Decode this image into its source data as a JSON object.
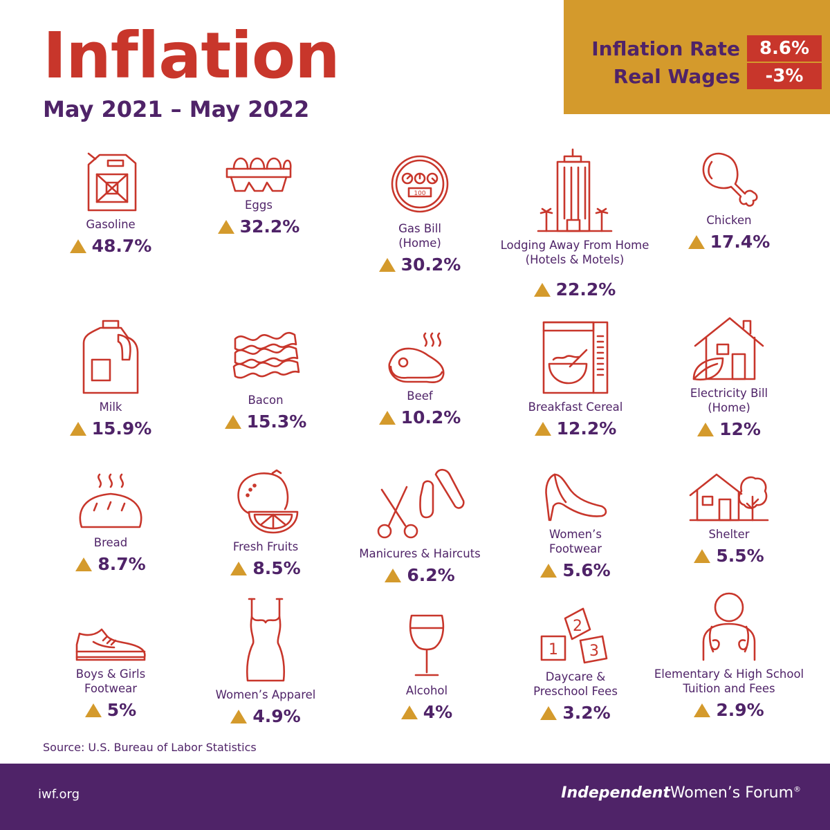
{
  "header": {
    "title": "Inflation",
    "subtitle": "May 2021 – May 2022"
  },
  "rate_box": {
    "inflation_rate_label": "Inflation Rate",
    "inflation_rate_value": "8.6%",
    "real_wages_label": "Real Wages",
    "real_wages_value": "-3%"
  },
  "items": [
    {
      "label": "Gasoline",
      "change": "48.7%",
      "icon": "gas-can-icon"
    },
    {
      "label": "Eggs",
      "change": "32.2%",
      "icon": "egg-carton-icon"
    },
    {
      "label": "Gas Bill\n(Home)",
      "change": "30.2%",
      "icon": "gas-meter-icon"
    },
    {
      "label": "Lodging Away From Home\n(Hotels & Motels)",
      "change": "22.2%",
      "icon": "hotel-icon"
    },
    {
      "label": "Chicken",
      "change": "17.4%",
      "icon": "chicken-leg-icon"
    },
    {
      "label": "Milk",
      "change": "15.9%",
      "icon": "milk-jug-icon"
    },
    {
      "label": "Bacon",
      "change": "15.3%",
      "icon": "bacon-icon"
    },
    {
      "label": "Beef",
      "change": "10.2%",
      "icon": "steak-icon"
    },
    {
      "label": "Breakfast Cereal",
      "change": "12.2%",
      "icon": "cereal-box-icon"
    },
    {
      "label": "Electricity Bill\n(Home)",
      "change": "12%",
      "icon": "eco-house-icon"
    },
    {
      "label": "Bread",
      "change": "8.7%",
      "icon": "bread-icon"
    },
    {
      "label": "Fresh Fruits",
      "change": "8.5%",
      "icon": "citrus-fruit-icon"
    },
    {
      "label": "Manicures & Haircuts",
      "change": "6.2%",
      "icon": "scissors-nail-file-icon"
    },
    {
      "label": "Women’s\nFootwear",
      "change": "5.6%",
      "icon": "high-heel-icon"
    },
    {
      "label": "Shelter",
      "change": "5.5%",
      "icon": "house-tree-icon"
    },
    {
      "label": "Boys & Girls\nFootwear",
      "change": "5%",
      "icon": "sneaker-icon"
    },
    {
      "label": "Women’s Apparel",
      "change": "4.9%",
      "icon": "dress-icon"
    },
    {
      "label": "Alcohol",
      "change": "4%",
      "icon": "wine-glass-icon"
    },
    {
      "label": "Daycare &\nPreschool Fees",
      "change": "3.2%",
      "icon": "toy-blocks-icon"
    },
    {
      "label": "Elementary & High School\nTuition and Fees",
      "change": "2.9%",
      "icon": "student-backpack-icon"
    }
  ],
  "source": "Source: U.S. Bureau of Labor Statistics",
  "footer": {
    "url": "iwf.org",
    "logo_bold": "Independent",
    "logo_rest": "Women’s Forum",
    "logo_mark": "®"
  },
  "colors": {
    "title_red": "#c8362b",
    "purple": "#4f2368",
    "gold": "#d49a2c",
    "background": "#ffffff"
  }
}
